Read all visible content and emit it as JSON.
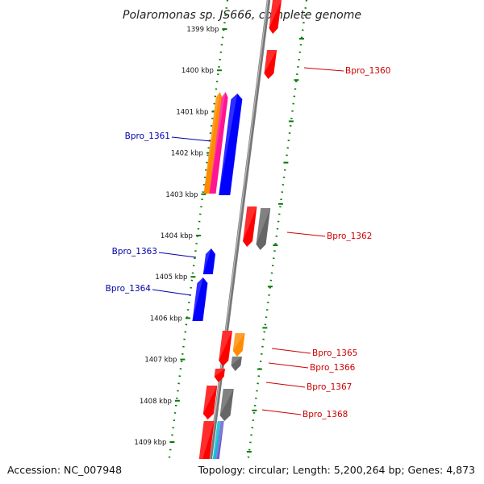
{
  "title": "Polaromonas sp. JS666, complete genome",
  "footer": {
    "accession": "Accession: NC_007948",
    "summary": "Topology: circular; Length: 5,200,264 bp; Genes: 4,873"
  },
  "colors": {
    "reverse_label": "#0000aa",
    "forward_label": "#cc0000",
    "backbone": "#777777",
    "dotted_track": "#0a7a0a"
  },
  "ticks": [
    "1399 kbp",
    "1400 kbp",
    "1401 kbp",
    "1402 kbp",
    "1403 kbp",
    "1404 kbp",
    "1405 kbp",
    "1406 kbp",
    "1407 kbp",
    "1408 kbp",
    "1409 kbp"
  ],
  "gene_labels": [
    {
      "name": "Bpro_1360",
      "strand": "forward"
    },
    {
      "name": "Bpro_1361",
      "strand": "reverse"
    },
    {
      "name": "Bpro_1362",
      "strand": "forward"
    },
    {
      "name": "Bpro_1363",
      "strand": "reverse"
    },
    {
      "name": "Bpro_1364",
      "strand": "reverse"
    },
    {
      "name": "Bpro_1365",
      "strand": "forward"
    },
    {
      "name": "Bpro_1366",
      "strand": "forward"
    },
    {
      "name": "Bpro_1367",
      "strand": "forward"
    },
    {
      "name": "Bpro_1368",
      "strand": "forward"
    }
  ]
}
